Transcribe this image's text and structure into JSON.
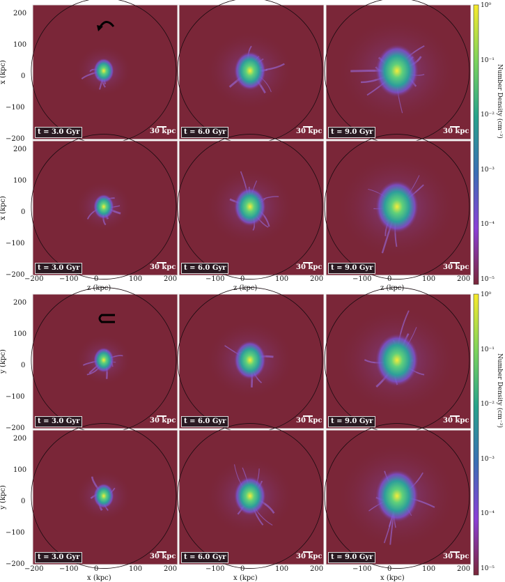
{
  "figure": {
    "colorbar_label": "Number Density (cm⁻³)",
    "colorbar_ticks": [
      "10⁰",
      "10⁻¹",
      "10⁻²",
      "10⁻³",
      "10⁻⁴",
      "10⁻⁵"
    ],
    "axis_ticks": [
      "200",
      "100",
      "0",
      "−100",
      "−200"
    ],
    "x_ticks": [
      "−200",
      "−100",
      "0",
      "100",
      "200"
    ],
    "scale_label": "30 kpc",
    "times": [
      "t = 3.0 Gyr",
      "t = 6.0 Gyr",
      "t = 9.0 Gyr"
    ],
    "groups": [
      {
        "row_ylabel": "x (kpc)",
        "xlabel": "z (kpc)"
      },
      {
        "row_ylabel": "y (kpc)",
        "xlabel": "x (kpc)"
      }
    ],
    "colors": {
      "background": "#7a2638",
      "circle": "#1a0b10",
      "high": "#f6e83a",
      "mid": "#2aa89a",
      "low": "#7a3fd0"
    }
  }
}
